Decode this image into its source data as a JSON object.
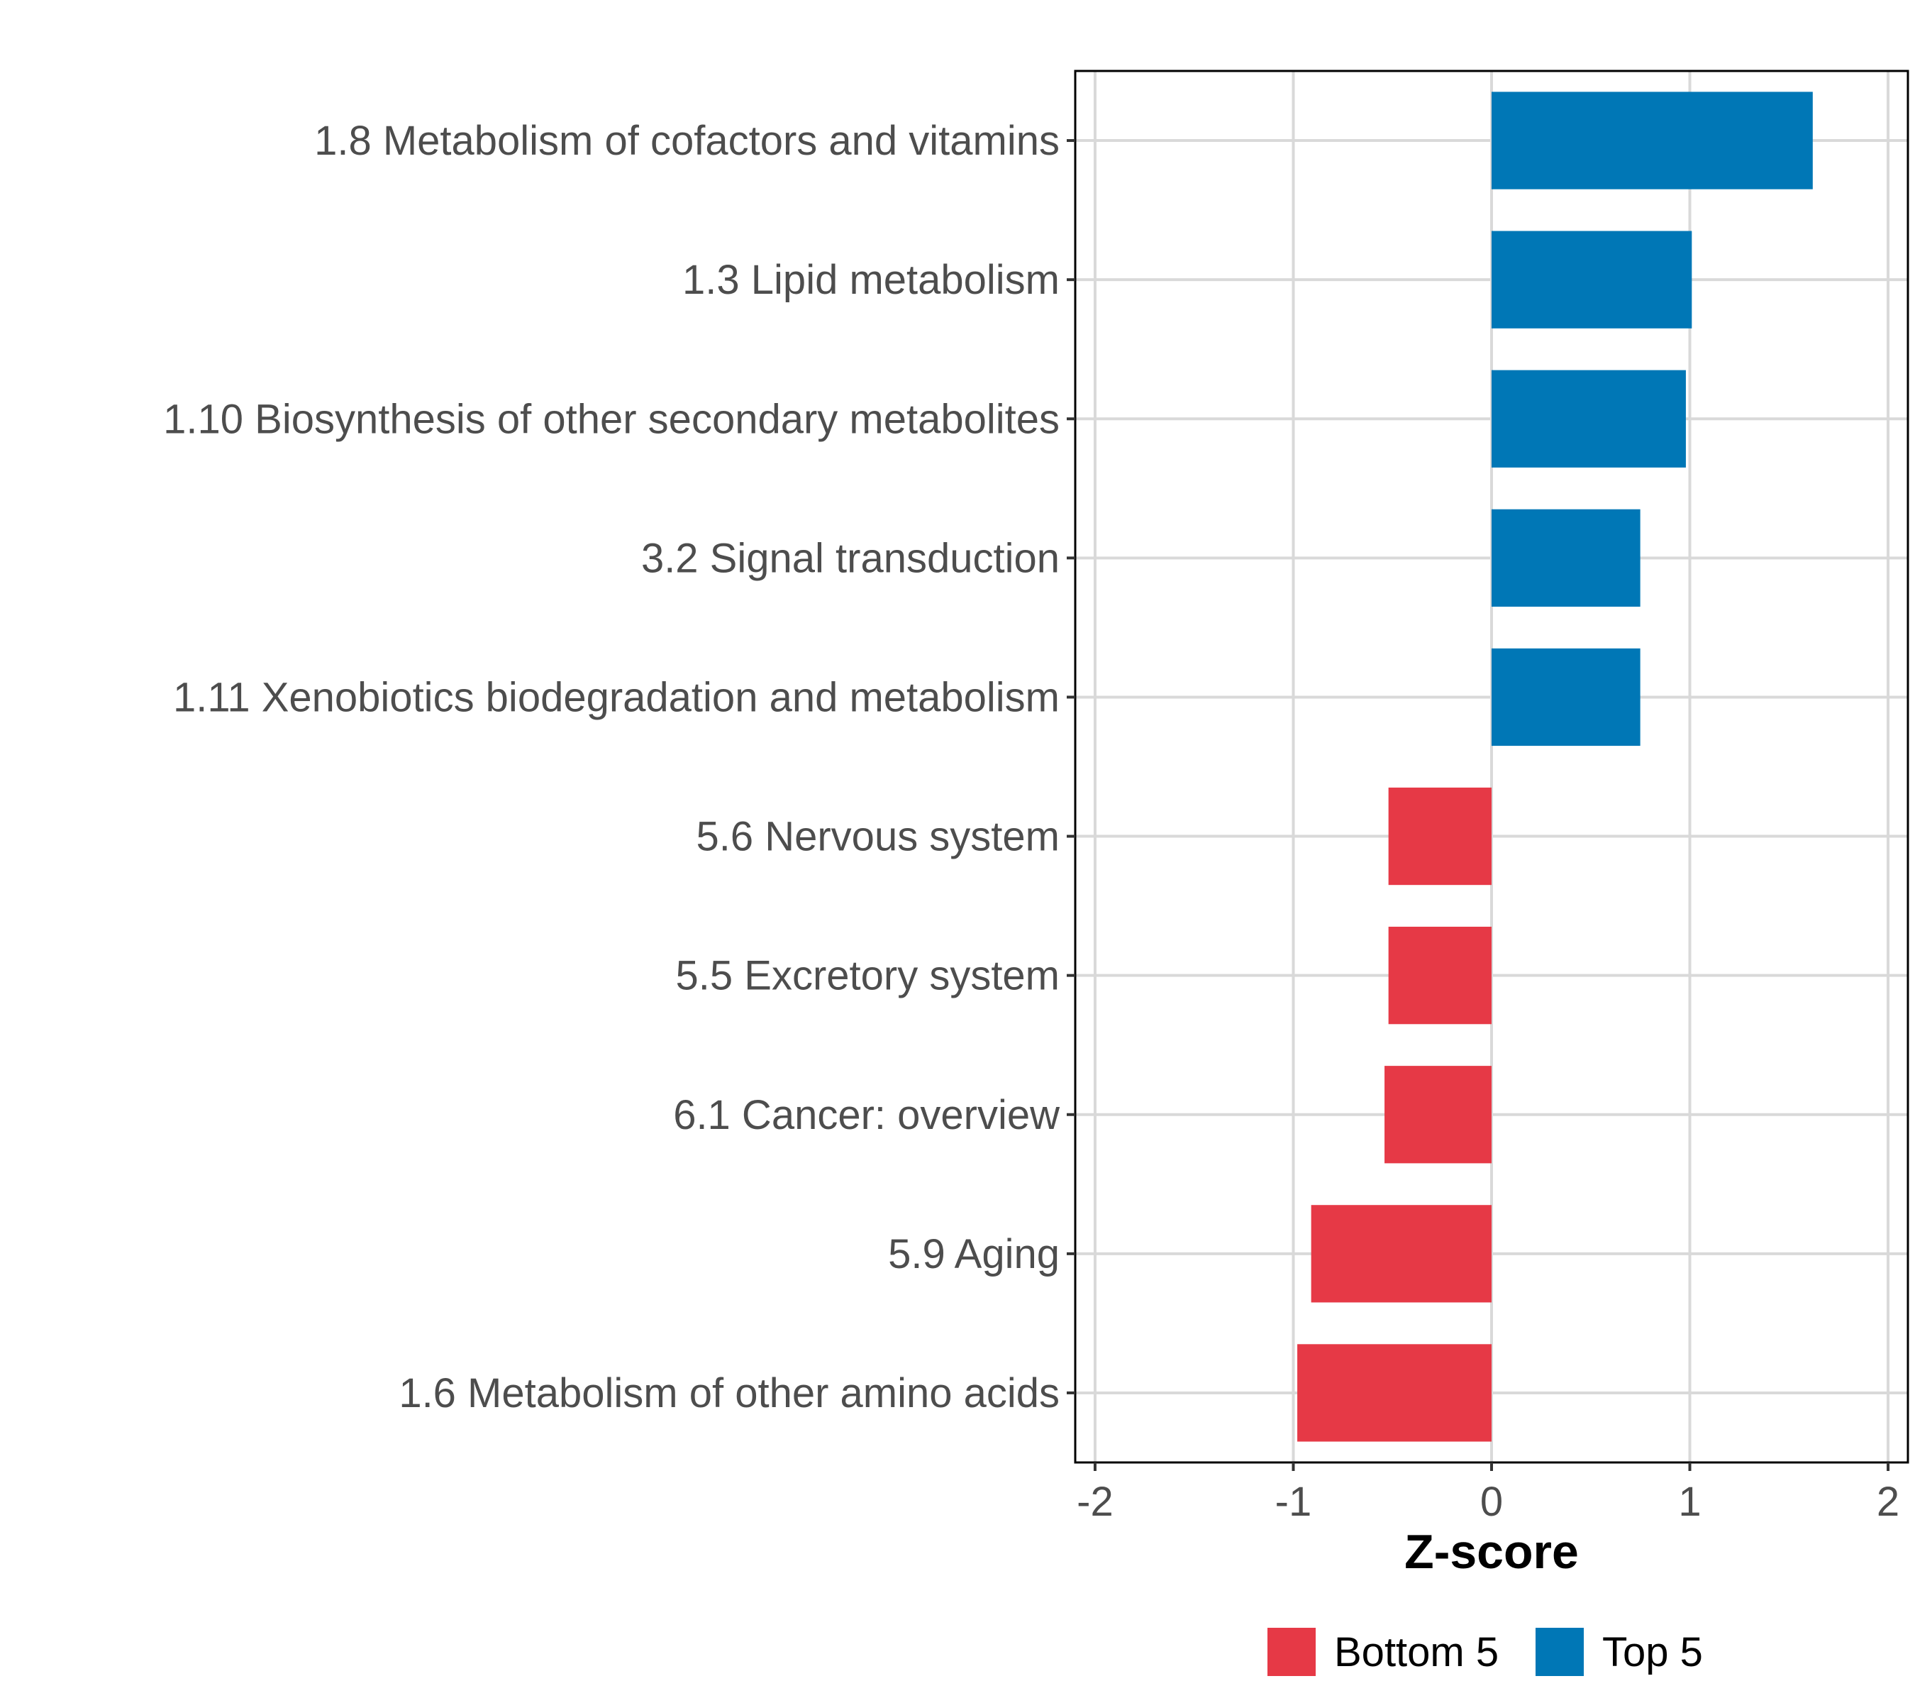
{
  "chart_data": {
    "type": "bar",
    "orientation": "horizontal",
    "title": "",
    "xlabel": "Z-score",
    "ylabel": "",
    "xlim": [
      -2.1,
      2.1
    ],
    "xticks": [
      -2,
      -1,
      0,
      1,
      2
    ],
    "xtick_labels": [
      "-2",
      "-1",
      "0",
      "1",
      "2"
    ],
    "grid": true,
    "legend_position": "bottom",
    "categories": [
      "1.8 Metabolism of cofactors and vitamins",
      "1.3 Lipid metabolism",
      "1.10 Biosynthesis of other secondary metabolites",
      "3.2 Signal transduction",
      "1.11 Xenobiotics biodegradation and metabolism",
      "5.6 Nervous system",
      "5.5 Excretory system",
      "6.1 Cancer: overview",
      "5.9 Aging",
      "1.6 Metabolism of other amino acids"
    ],
    "values": [
      1.62,
      1.01,
      0.98,
      0.75,
      0.75,
      -0.52,
      -0.52,
      -0.54,
      -0.91,
      -0.98
    ],
    "groups": [
      "Top 5",
      "Top 5",
      "Top 5",
      "Top 5",
      "Top 5",
      "Bottom 5",
      "Bottom 5",
      "Bottom 5",
      "Bottom 5",
      "Bottom 5"
    ],
    "legend": [
      {
        "name": "Bottom 5",
        "color": "#e63946"
      },
      {
        "name": "Top 5",
        "color": "#0077b6"
      }
    ]
  }
}
